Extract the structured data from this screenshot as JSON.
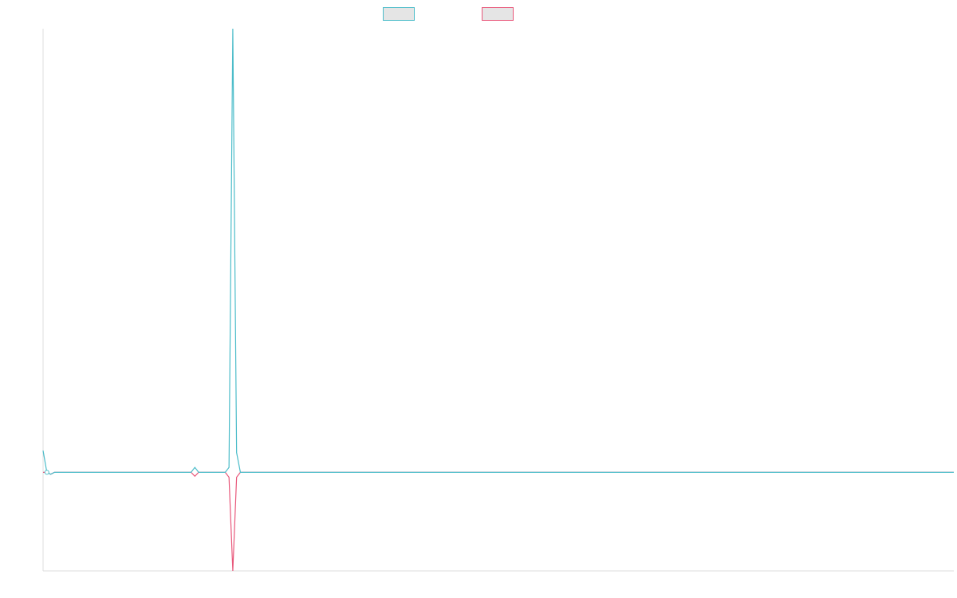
{
  "chart_data": {
    "type": "line",
    "title": "",
    "xlabel": "",
    "ylabel": "",
    "legend_position": "top-center",
    "grid": false,
    "ylim": [
      -1,
      4.5
    ],
    "x": [
      0,
      1,
      2,
      3,
      4,
      5,
      6,
      7,
      8,
      9,
      10,
      11,
      12,
      13,
      14,
      15,
      16,
      17,
      18,
      19,
      20,
      21,
      22,
      23,
      24,
      25,
      26,
      27,
      28,
      29,
      30,
      31,
      32,
      33,
      34,
      35,
      36,
      37,
      38,
      39,
      40,
      41,
      42,
      43,
      44,
      45,
      46,
      47,
      48,
      49,
      50,
      51,
      52,
      53,
      54,
      55,
      56,
      57,
      58,
      59,
      60,
      61,
      62,
      63,
      64,
      65,
      66,
      67,
      68,
      69,
      70,
      71,
      72,
      73,
      74,
      75,
      76,
      77,
      78,
      79,
      80,
      81,
      82,
      83,
      84,
      85,
      86,
      87,
      88,
      89,
      90,
      91,
      92,
      93,
      94,
      95,
      96,
      97,
      98,
      99,
      100,
      101,
      102,
      103,
      104,
      105,
      106,
      107,
      108,
      109,
      110,
      111,
      112,
      113,
      114,
      115,
      116,
      117,
      118,
      119,
      120,
      121,
      122,
      123,
      124,
      125,
      126,
      127,
      128,
      129,
      130,
      131,
      132,
      133,
      134,
      135,
      136,
      137,
      138,
      139,
      140,
      141,
      142,
      143,
      144,
      145,
      146,
      147,
      148,
      149,
      150,
      151,
      152,
      153,
      154,
      155,
      156,
      157,
      158,
      159,
      160,
      161,
      162,
      163,
      164,
      165,
      166,
      167,
      168,
      169,
      170,
      171,
      172,
      173,
      174,
      175,
      176,
      177,
      178,
      179,
      180,
      181,
      182,
      183,
      184,
      185,
      186,
      187,
      188,
      189,
      190,
      191,
      192,
      193,
      194,
      195,
      196,
      197,
      198,
      199,
      200,
      201,
      202,
      203,
      204,
      205,
      206,
      207,
      208,
      209,
      210,
      211,
      212,
      213,
      214,
      215,
      216,
      217,
      218,
      219,
      220,
      221,
      222,
      223,
      224,
      225,
      226,
      227,
      228,
      229,
      230,
      231,
      232,
      233,
      234,
      235,
      236,
      237,
      238,
      239,
      240
    ],
    "series": [
      {
        "color": "#4bbcc9",
        "spikes": [
          [
            0,
            0.22
          ],
          [
            1,
            0
          ],
          [
            2,
            -0.02
          ],
          [
            40,
            0.05
          ],
          [
            41,
            0
          ],
          [
            49,
            0.05
          ],
          [
            50,
            4.5
          ],
          [
            51,
            0.2
          ],
          [
            52,
            0
          ]
        ]
      },
      {
        "color": "#e8577a",
        "spikes": [
          [
            0,
            0
          ],
          [
            1,
            0
          ],
          [
            2,
            -0.02
          ],
          [
            40,
            -0.04
          ],
          [
            41,
            0
          ],
          [
            49,
            -0.05
          ],
          [
            50,
            -1.0
          ],
          [
            51,
            -0.05
          ],
          [
            52,
            0
          ]
        ]
      }
    ],
    "legend": [
      {
        "label": "",
        "color": "#4bbcc9"
      },
      {
        "label": "",
        "color": "#e8577a"
      }
    ]
  }
}
